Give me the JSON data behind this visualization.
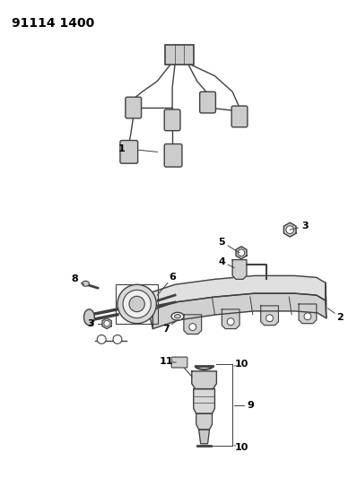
{
  "title": "91114 1400",
  "bg_color": "#ffffff",
  "line_color": "#404040",
  "label_color": "#000000",
  "fig_width": 3.98,
  "fig_height": 5.33,
  "dpi": 100
}
